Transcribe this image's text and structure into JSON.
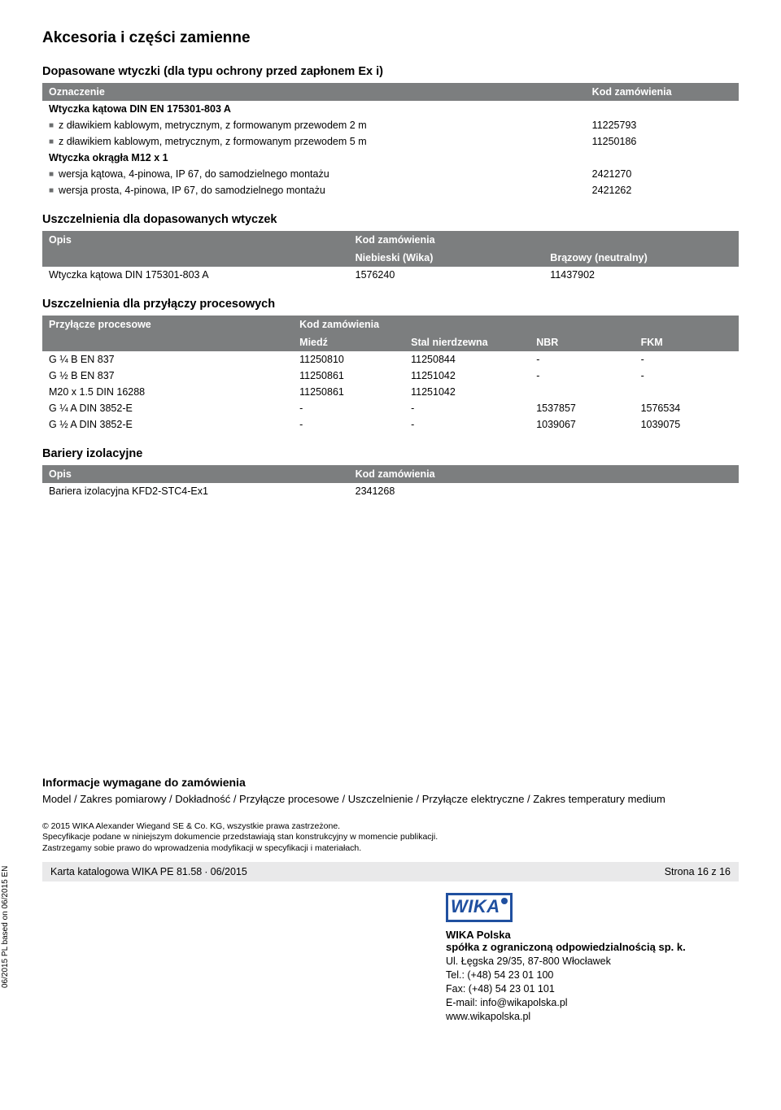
{
  "page": {
    "title": "Akcesoria i części zamienne",
    "side_label": "06/2015 PL based on 06/2015 EN"
  },
  "section1": {
    "title": "Dopasowane wtyczki (dla typu ochrony przed zapłonem Ex i)",
    "header_left": "Oznaczenie",
    "header_right": "Kod zamówienia",
    "rows": [
      {
        "bold": true,
        "label": "Wtyczka kątowa DIN EN 175301-803 A",
        "code": ""
      },
      {
        "bullet": true,
        "label": "z dławikiem kablowym, metrycznym, z formowanym przewodem 2 m",
        "code": "11225793"
      },
      {
        "bullet": true,
        "label": "z dławikiem kablowym, metrycznym, z formowanym przewodem 5 m",
        "code": "11250186"
      },
      {
        "bold": true,
        "label": "Wtyczka okrągła M12 x 1",
        "code": ""
      },
      {
        "bullet": true,
        "label": "wersja kątowa, 4-pinowa, IP 67, do samodzielnego montażu",
        "code": "2421270"
      },
      {
        "bullet": true,
        "label": "wersja prosta, 4-pinowa, IP 67, do samodzielnego montażu",
        "code": "2421262"
      }
    ]
  },
  "section2": {
    "title": "Uszczelnienia dla dopasowanych wtyczek",
    "header_left": "Opis",
    "header_right": "Kod zamówienia",
    "sub_left": "Niebieski (Wika)",
    "sub_right": "Brązowy (neutralny)",
    "rows": [
      {
        "label": "Wtyczka kątowa DIN 175301-803 A",
        "c1": "1576240",
        "c2": "11437902"
      }
    ]
  },
  "section3": {
    "title": "Uszczelnienia dla przyłączy procesowych",
    "header_left": "Przyłącze procesowe",
    "header_right": "Kod zamówienia",
    "sub": [
      "Miedź",
      "Stal nierdzewna",
      "NBR",
      "FKM"
    ],
    "rows": [
      {
        "label": "G ¼ B EN 837",
        "v": [
          "11250810",
          "11250844",
          "-",
          "-"
        ]
      },
      {
        "label": "G ½ B EN 837",
        "v": [
          "11250861",
          "11251042",
          "-",
          "-"
        ]
      },
      {
        "label": "M20 x 1.5 DIN 16288",
        "v": [
          "11250861",
          "11251042",
          "",
          ""
        ]
      },
      {
        "label": "G ¼ A DIN 3852-E",
        "v": [
          "-",
          "-",
          "1537857",
          "1576534"
        ]
      },
      {
        "label": "G ½ A DIN 3852-E",
        "v": [
          "-",
          "-",
          "1039067",
          "1039075"
        ]
      }
    ]
  },
  "section4": {
    "title": "Bariery izolacyjne",
    "header_left": "Opis",
    "header_right": "Kod zamówienia",
    "rows": [
      {
        "label": "Bariera izolacyjna KFD2-STC4-Ex1",
        "code": "2341268"
      }
    ]
  },
  "footer": {
    "order_title": "Informacje wymagane do zamówienia",
    "order_text": "Model / Zakres pomiarowy / Dokładność / Przyłącze procesowe / Uszczelnienie / Przyłącze elektryczne / Zakres temperatury medium",
    "fineprint": [
      "© 2015 WIKA Alexander Wiegand SE & Co. KG, wszystkie prawa zastrzeżone.",
      "Specyfikacje podane w niniejszym dokumencie przedstawiają stan konstrukcyjny w momencie publikacji.",
      "Zastrzegamy sobie prawo do wprowadzenia modyfikacji w specyfikacji i materiałach."
    ],
    "bottom_left": "Karta katalogowa WIKA PE 81.58 ∙ 06/2015",
    "bottom_right": "Strona 16 z 16"
  },
  "company": {
    "logo_text": "WIKA",
    "name": "WIKA Polska",
    "sub": "spółka z ograniczoną odpowiedzialnością sp. k.",
    "lines": [
      "Ul. Łęgska 29/35, 87-800 Włocławek",
      "Tel.: (+48) 54 23 01 100",
      "Fax: (+48) 54 23 01 101",
      "E-mail: info@wikapolska.pl",
      "www.wikapolska.pl"
    ]
  },
  "colors": {
    "header_bg": "#7c7e7f",
    "header_text": "#ffffff",
    "bottom_bar_bg": "#e9e9ea",
    "logo_color": "#2050a0"
  }
}
